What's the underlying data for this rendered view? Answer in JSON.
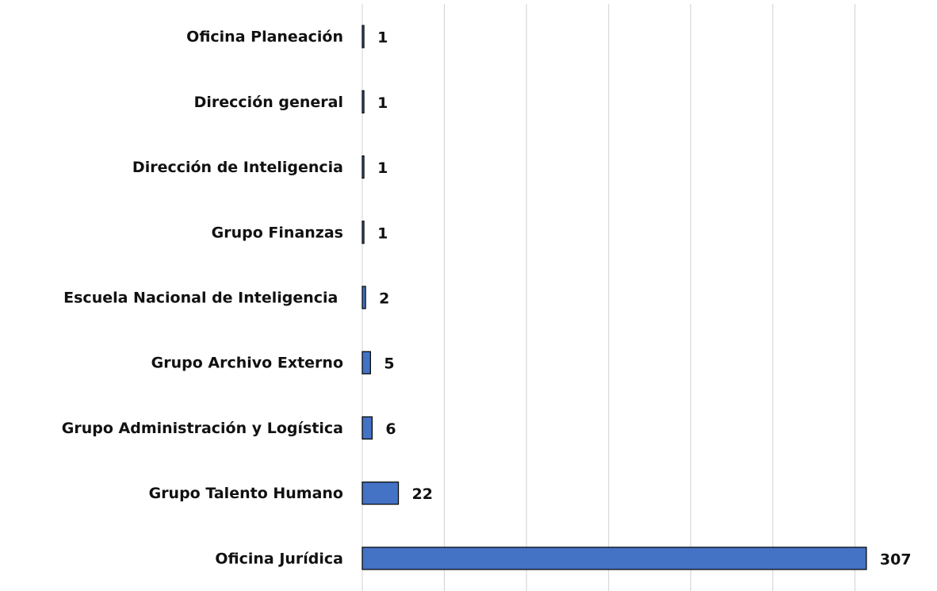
{
  "chart_data": {
    "type": "bar",
    "orientation": "horizontal",
    "categories": [
      "Oficina Planeación",
      "Dirección general",
      "Dirección de Inteligencia",
      "Grupo Finanzas",
      "Escuela Nacional de Inteligencia ",
      "Grupo Archivo Externo",
      "Grupo Administración y Logística",
      "Grupo Talento Humano",
      "Oficina Jurídica"
    ],
    "values": [
      1,
      1,
      1,
      1,
      2,
      5,
      6,
      22,
      307
    ],
    "color": "#4472c4",
    "xlim": [
      0,
      350
    ],
    "xticks": [
      0,
      50,
      100,
      150,
      200,
      250,
      300
    ],
    "grid": true
  }
}
